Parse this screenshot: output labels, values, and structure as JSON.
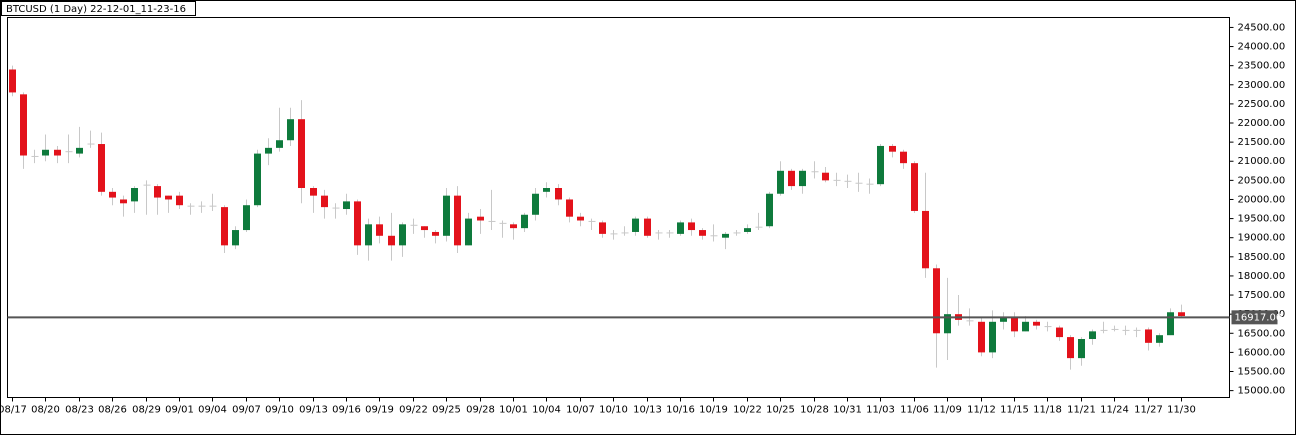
{
  "chart_data": {
    "type": "candlestick",
    "title": "BTCUSD (1 Day) 22-12-01_11-23-16",
    "categories": [
      "08/17",
      null,
      null,
      "08/20",
      null,
      null,
      "08/23",
      null,
      null,
      "08/26",
      null,
      null,
      "08/29",
      null,
      null,
      "09/01",
      null,
      null,
      "09/04",
      null,
      null,
      "09/07",
      null,
      null,
      "09/10",
      null,
      null,
      "09/13",
      null,
      null,
      "09/16",
      null,
      null,
      "09/19",
      null,
      null,
      "09/22",
      null,
      null,
      "09/25",
      null,
      null,
      "09/28",
      null,
      null,
      "10/01",
      null,
      null,
      "10/04",
      null,
      null,
      "10/07",
      null,
      null,
      "10/10",
      null,
      null,
      "10/13",
      null,
      null,
      "10/16",
      null,
      null,
      "10/19",
      null,
      null,
      "10/22",
      null,
      null,
      "10/25",
      null,
      null,
      "10/28",
      null,
      null,
      "10/31",
      null,
      null,
      "11/03",
      null,
      null,
      "11/06",
      null,
      null,
      "11/09",
      null,
      null,
      "11/12",
      null,
      null,
      "11/15",
      null,
      null,
      "11/18",
      null,
      null,
      "11/21",
      null,
      null,
      "11/24",
      null,
      null,
      "11/27",
      null,
      null,
      "11/30"
    ],
    "open": [
      23400,
      22750,
      21100,
      21150,
      21300,
      21250,
      21200,
      21450,
      21450,
      20200,
      20000,
      19950,
      20350,
      20350,
      20100,
      20100,
      19850,
      19800,
      19850,
      19800,
      18800,
      19200,
      19850,
      21200,
      21350,
      21550,
      22100,
      20300,
      20100,
      19800,
      19750,
      19950,
      18800,
      19350,
      19050,
      18800,
      19350,
      19300,
      19150,
      19050,
      20100,
      18800,
      19550,
      19450,
      19400,
      19350,
      19250,
      19600,
      20200,
      20300,
      20000,
      19550,
      19450,
      19400,
      19100,
      19100,
      19150,
      19500,
      19150,
      19150,
      19100,
      19400,
      19200,
      19050,
      19000,
      19100,
      19150,
      19250,
      19300,
      20150,
      20750,
      20350,
      20750,
      20700,
      20500,
      20500,
      20450,
      20400,
      20400,
      21400,
      21250,
      20950,
      19700,
      18200,
      16500,
      17000,
      16850,
      16800,
      16000,
      16800,
      16900,
      16550,
      16800,
      16700,
      16650,
      16400,
      15850,
      16350,
      16550,
      16600,
      16600,
      16550,
      16600,
      16250,
      16450,
      17050
    ],
    "high": [
      23500,
      22800,
      21300,
      21700,
      21400,
      21700,
      21900,
      21800,
      21750,
      20300,
      20100,
      20350,
      20500,
      20400,
      20100,
      20200,
      19900,
      19950,
      20150,
      19850,
      19300,
      20000,
      21300,
      21600,
      22400,
      22400,
      22600,
      20350,
      20250,
      19900,
      20150,
      20000,
      19500,
      19550,
      19650,
      19400,
      19500,
      19300,
      19200,
      20300,
      20350,
      19650,
      19750,
      20250,
      19450,
      19400,
      19650,
      20300,
      20450,
      20400,
      20050,
      19650,
      19500,
      19450,
      19200,
      19300,
      19550,
      19550,
      19200,
      19200,
      19450,
      19500,
      19250,
      19350,
      19150,
      19200,
      19350,
      19650,
      20200,
      21000,
      20800,
      20800,
      21000,
      20850,
      20700,
      20650,
      20700,
      20550,
      21450,
      21450,
      21300,
      21000,
      20700,
      18300,
      17950,
      17500,
      17150,
      16900,
      17100,
      17050,
      17050,
      16950,
      16850,
      16800,
      16700,
      16450,
      16400,
      16600,
      16800,
      16700,
      16700,
      16650,
      16650,
      16500,
      17150,
      17250
    ],
    "low": [
      22700,
      20800,
      20950,
      21000,
      20950,
      20950,
      21100,
      21350,
      20100,
      19850,
      19550,
      19650,
      19600,
      19600,
      19650,
      19750,
      19600,
      19650,
      19700,
      18600,
      18700,
      19150,
      19800,
      20900,
      21250,
      21400,
      19900,
      19650,
      19500,
      19500,
      19600,
      18550,
      18400,
      18850,
      18400,
      18500,
      19100,
      19000,
      18850,
      18900,
      18600,
      18800,
      19100,
      19200,
      19000,
      18950,
      19150,
      19450,
      20050,
      19850,
      19400,
      19300,
      19200,
      19000,
      18950,
      19050,
      19050,
      19000,
      18950,
      19000,
      19050,
      19050,
      18950,
      18900,
      18700,
      19050,
      19100,
      19200,
      19250,
      20100,
      20250,
      20150,
      20550,
      20450,
      20350,
      20300,
      20200,
      20150,
      20350,
      21100,
      20800,
      19650,
      17950,
      15600,
      15800,
      16700,
      16700,
      15900,
      15850,
      16600,
      16400,
      16550,
      16600,
      16550,
      16300,
      15550,
      15650,
      16200,
      16500,
      16550,
      16450,
      16400,
      16050,
      16150,
      16450,
      16900
    ],
    "close": [
      22800,
      21150,
      21150,
      21300,
      21150,
      21250,
      21350,
      21450,
      20200,
      20050,
      19900,
      20300,
      20400,
      20050,
      20000,
      19850,
      19800,
      19850,
      19800,
      18800,
      19200,
      19850,
      21200,
      21350,
      21550,
      22100,
      20300,
      20100,
      19800,
      19750,
      19950,
      18800,
      19350,
      19050,
      18800,
      19350,
      19300,
      19200,
      19050,
      20100,
      18800,
      19500,
      19450,
      19400,
      19350,
      19250,
      19600,
      20150,
      20300,
      20000,
      19550,
      19450,
      19400,
      19100,
      19100,
      19150,
      19500,
      19050,
      19100,
      19100,
      19400,
      19200,
      19050,
      19050,
      19100,
      19150,
      19250,
      19300,
      20150,
      20750,
      20350,
      20750,
      20700,
      20500,
      20500,
      20450,
      20400,
      20400,
      21400,
      21250,
      20950,
      19700,
      18200,
      16500,
      17000,
      16850,
      16800,
      16000,
      16800,
      16900,
      16550,
      16800,
      16700,
      16650,
      16400,
      15850,
      16350,
      16550,
      16600,
      16600,
      16550,
      16600,
      16250,
      16450,
      17050,
      16950
    ],
    "up_color": "#0e7a3c",
    "down_color": "#e3121b",
    "ylim": [
      14820,
      24760
    ],
    "yticks": [
      {
        "value": 15000,
        "label": "15000.00"
      },
      {
        "value": 15500,
        "label": "15500.00"
      },
      {
        "value": 16000,
        "label": "16000.00"
      },
      {
        "value": 16500,
        "label": "16500.00"
      },
      {
        "value": 17000,
        "label": "17000.00"
      },
      {
        "value": 17500,
        "label": "17500.00"
      },
      {
        "value": 18000,
        "label": "18000.00"
      },
      {
        "value": 18500,
        "label": "18500.00"
      },
      {
        "value": 19000,
        "label": "19000.00"
      },
      {
        "value": 19500,
        "label": "19500.00"
      },
      {
        "value": 20000,
        "label": "20000.00"
      },
      {
        "value": 20500,
        "label": "20500.00"
      },
      {
        "value": 21000,
        "label": "21000.00"
      },
      {
        "value": 21500,
        "label": "21500.00"
      },
      {
        "value": 22000,
        "label": "22000.00"
      },
      {
        "value": 22500,
        "label": "22500.00"
      },
      {
        "value": 23000,
        "label": "23000.00"
      },
      {
        "value": 23500,
        "label": "23500.00"
      },
      {
        "value": 24000,
        "label": "24000.00"
      },
      {
        "value": 24500,
        "label": "24500.00"
      }
    ],
    "price_line": {
      "value": 16917,
      "label": "16917.00"
    }
  }
}
